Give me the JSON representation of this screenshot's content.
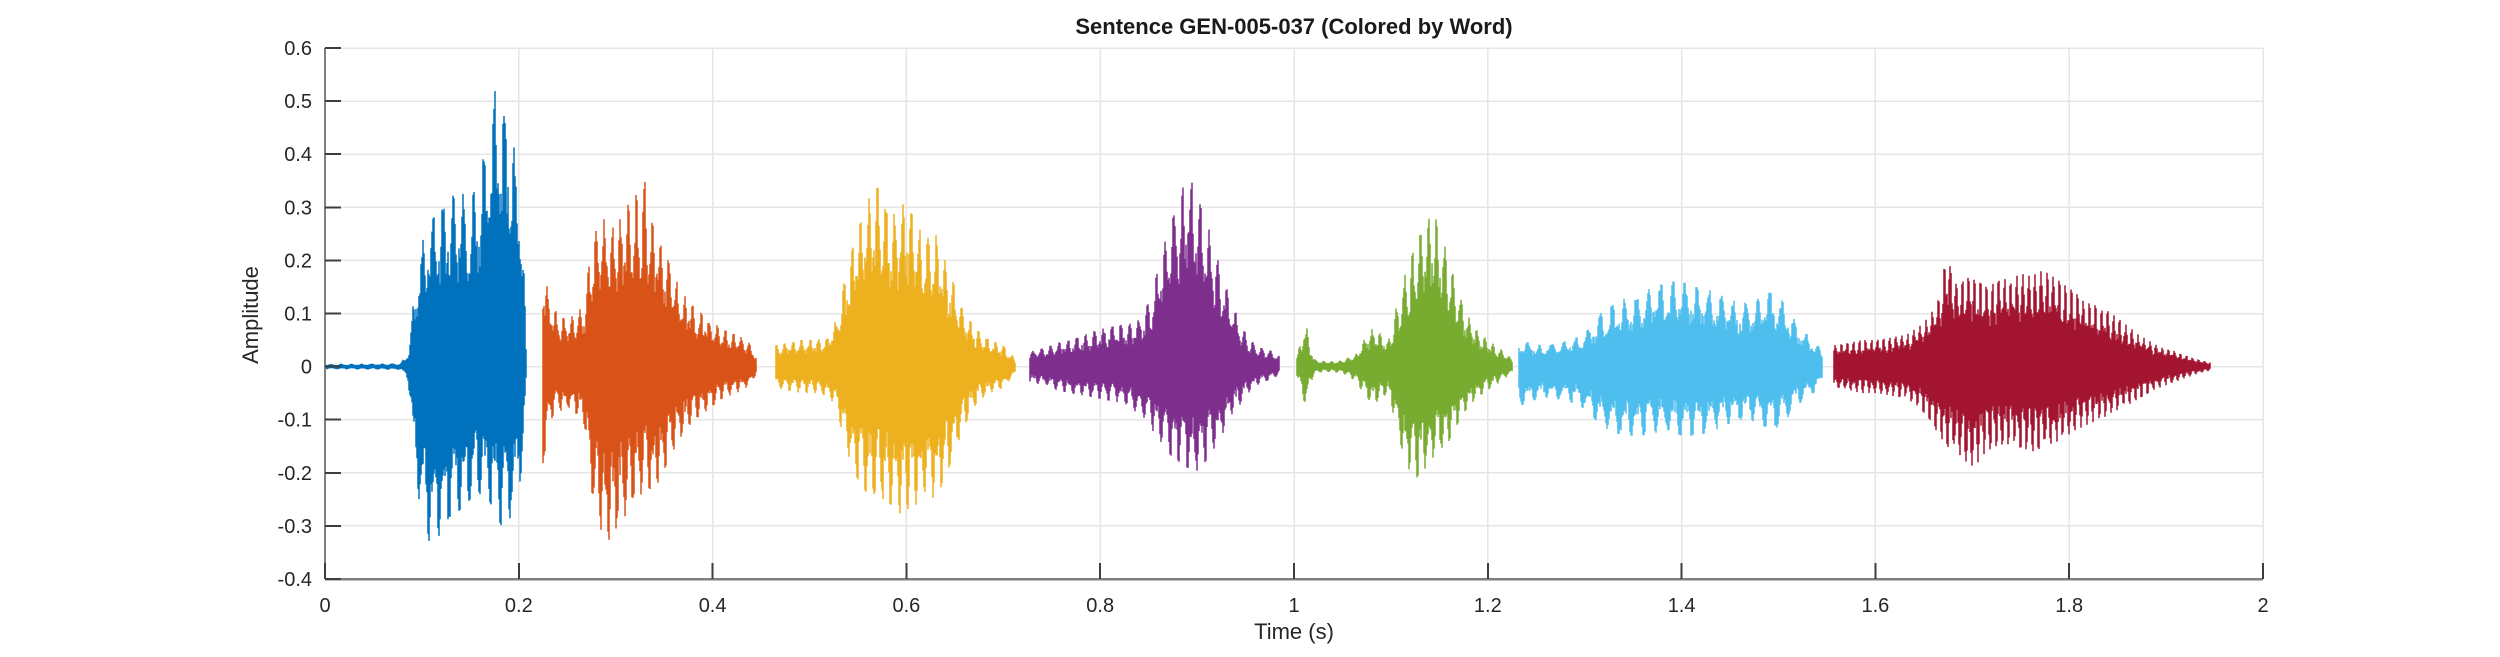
{
  "chart_data": {
    "type": "line",
    "subtype": "audio-waveform",
    "title": "Sentence GEN-005-037 (Colored by Word)",
    "xlabel": "Time (s)",
    "ylabel": "Amplitude",
    "xlim": [
      0,
      2
    ],
    "ylim": [
      -0.4,
      0.6
    ],
    "grid": true,
    "legend_position": "none",
    "axis_color": "#7f7f7f",
    "tick_mark_color": "#3d3d3d",
    "grid_color": "#e6e6e6",
    "tick_label_color": "#262626",
    "background_color": "#ffffff",
    "xticks": {
      "values": [
        0,
        0.2,
        0.4,
        0.6,
        0.8,
        1,
        1.2,
        1.4,
        1.6,
        1.8,
        2
      ],
      "labels": [
        "0",
        "0.2",
        "0.4",
        "0.6",
        "0.8",
        "1",
        "1.2",
        "1.4",
        "1.6",
        "1.8",
        "2"
      ]
    },
    "yticks": {
      "values": [
        0.6,
        0.5,
        0.4,
        0.3,
        0.2,
        0.1,
        0,
        -0.1,
        -0.2,
        -0.3,
        -0.4
      ],
      "labels": [
        "0.6",
        "0.5",
        "0.4",
        "0.3",
        "0.2",
        "0.1",
        "0",
        "-0.1",
        "-0.2",
        "-0.3",
        "-0.4"
      ]
    },
    "words": [
      {
        "index": 1,
        "color": "#0072BD",
        "t_start": 0.0,
        "t_end": 0.2075,
        "peak_amplitude": 0.52,
        "min_amplitude": -0.34,
        "texture_f0_hz": 95,
        "seed": 11,
        "envelope": {
          "t": [
            0.0,
            0.078,
            0.083,
            0.086,
            0.09,
            0.096,
            0.104,
            0.112,
            0.12,
            0.13,
            0.14,
            0.15,
            0.16,
            0.168,
            0.175,
            0.182,
            0.19,
            0.196,
            0.201,
            0.205,
            0.2075
          ],
          "upper": [
            0.005,
            0.006,
            0.02,
            0.03,
            0.1,
            0.2,
            0.26,
            0.28,
            0.3,
            0.32,
            0.33,
            0.31,
            0.36,
            0.44,
            0.52,
            0.5,
            0.48,
            0.4,
            0.33,
            0.22,
            0.03
          ],
          "lower": [
            -0.005,
            -0.006,
            -0.015,
            -0.03,
            -0.12,
            -0.24,
            -0.32,
            -0.34,
            -0.31,
            -0.28,
            -0.27,
            -0.25,
            -0.24,
            -0.25,
            -0.27,
            -0.3,
            -0.29,
            -0.26,
            -0.22,
            -0.16,
            -0.03
          ]
        }
      },
      {
        "index": 2,
        "color": "#D95319",
        "t_start": 0.2245,
        "t_end": 0.445,
        "peak_amplitude": 0.35,
        "min_amplitude": -0.33,
        "texture_f0_hz": 120,
        "seed": 22,
        "envelope": {
          "t": [
            0.2245,
            0.228,
            0.233,
            0.24,
            0.25,
            0.26,
            0.268,
            0.274,
            0.282,
            0.29,
            0.298,
            0.306,
            0.315,
            0.324,
            0.331,
            0.338,
            0.346,
            0.356,
            0.368,
            0.382,
            0.396,
            0.41,
            0.424,
            0.436,
            0.445
          ],
          "upper": [
            0.2,
            0.16,
            0.12,
            0.1,
            0.09,
            0.1,
            0.12,
            0.22,
            0.27,
            0.28,
            0.26,
            0.29,
            0.31,
            0.33,
            0.35,
            0.28,
            0.24,
            0.19,
            0.14,
            0.11,
            0.09,
            0.07,
            0.06,
            0.05,
            0.02
          ],
          "lower": [
            -0.21,
            -0.14,
            -0.1,
            -0.085,
            -0.08,
            -0.09,
            -0.11,
            -0.24,
            -0.3,
            -0.33,
            -0.32,
            -0.29,
            -0.27,
            -0.25,
            -0.22,
            -0.24,
            -0.21,
            -0.17,
            -0.13,
            -0.1,
            -0.08,
            -0.06,
            -0.05,
            -0.04,
            -0.015
          ]
        }
      },
      {
        "index": 3,
        "color": "#EDB120",
        "t_start": 0.465,
        "t_end": 0.712,
        "peak_amplitude": 0.35,
        "min_amplitude": -0.28,
        "texture_f0_hz": 115,
        "seed": 33,
        "envelope": {
          "t": [
            0.465,
            0.478,
            0.492,
            0.506,
            0.518,
            0.528,
            0.536,
            0.544,
            0.552,
            0.56,
            0.568,
            0.576,
            0.584,
            0.592,
            0.6,
            0.61,
            0.62,
            0.63,
            0.64,
            0.65,
            0.66,
            0.672,
            0.686,
            0.7,
            0.712
          ],
          "upper": [
            0.04,
            0.045,
            0.05,
            0.05,
            0.055,
            0.09,
            0.16,
            0.22,
            0.27,
            0.31,
            0.35,
            0.31,
            0.28,
            0.3,
            0.31,
            0.27,
            0.24,
            0.25,
            0.2,
            0.15,
            0.1,
            0.07,
            0.05,
            0.04,
            0.015
          ],
          "lower": [
            -0.04,
            -0.045,
            -0.05,
            -0.05,
            -0.055,
            -0.08,
            -0.14,
            -0.19,
            -0.22,
            -0.24,
            -0.24,
            -0.25,
            -0.26,
            -0.28,
            -0.27,
            -0.26,
            -0.24,
            -0.25,
            -0.21,
            -0.16,
            -0.11,
            -0.07,
            -0.05,
            -0.04,
            -0.015
          ]
        }
      },
      {
        "index": 4,
        "color": "#7E2F8E",
        "t_start": 0.728,
        "t_end": 0.985,
        "peak_amplitude": 0.36,
        "min_amplitude": -0.2,
        "texture_f0_hz": 110,
        "seed": 44,
        "envelope": {
          "t": [
            0.728,
            0.742,
            0.756,
            0.77,
            0.784,
            0.798,
            0.812,
            0.826,
            0.84,
            0.85,
            0.858,
            0.866,
            0.874,
            0.882,
            0.89,
            0.897,
            0.904,
            0.912,
            0.92,
            0.928,
            0.936,
            0.945,
            0.955,
            0.966,
            0.976,
            0.985
          ],
          "upper": [
            0.03,
            0.035,
            0.045,
            0.05,
            0.06,
            0.07,
            0.075,
            0.08,
            0.09,
            0.12,
            0.17,
            0.23,
            0.28,
            0.32,
            0.36,
            0.34,
            0.3,
            0.26,
            0.21,
            0.16,
            0.12,
            0.08,
            0.05,
            0.035,
            0.03,
            0.02
          ],
          "lower": [
            -0.03,
            -0.035,
            -0.045,
            -0.05,
            -0.055,
            -0.06,
            -0.065,
            -0.07,
            -0.09,
            -0.11,
            -0.13,
            -0.15,
            -0.17,
            -0.18,
            -0.19,
            -0.2,
            -0.19,
            -0.17,
            -0.15,
            -0.12,
            -0.09,
            -0.07,
            -0.045,
            -0.03,
            -0.025,
            -0.015
          ]
        }
      },
      {
        "index": 5,
        "color": "#77AC30",
        "t_start": 1.003,
        "t_end": 1.225,
        "peak_amplitude": 0.29,
        "min_amplitude": -0.21,
        "texture_f0_hz": 120,
        "seed": 55,
        "envelope": {
          "t": [
            1.003,
            1.008,
            1.012,
            1.016,
            1.022,
            1.035,
            1.05,
            1.065,
            1.075,
            1.083,
            1.09,
            1.097,
            1.104,
            1.112,
            1.12,
            1.128,
            1.136,
            1.144,
            1.152,
            1.16,
            1.168,
            1.178,
            1.188,
            1.2,
            1.212,
            1.225
          ],
          "upper": [
            0.025,
            0.05,
            0.09,
            0.04,
            0.012,
            0.01,
            0.012,
            0.025,
            0.06,
            0.075,
            0.06,
            0.05,
            0.1,
            0.16,
            0.2,
            0.24,
            0.27,
            0.29,
            0.25,
            0.2,
            0.15,
            0.1,
            0.07,
            0.05,
            0.035,
            0.015
          ],
          "lower": [
            -0.02,
            -0.05,
            -0.075,
            -0.035,
            -0.012,
            -0.01,
            -0.012,
            -0.03,
            -0.06,
            -0.07,
            -0.06,
            -0.05,
            -0.1,
            -0.16,
            -0.2,
            -0.21,
            -0.19,
            -0.17,
            -0.16,
            -0.14,
            -0.11,
            -0.08,
            -0.06,
            -0.045,
            -0.03,
            -0.012
          ]
        }
      },
      {
        "index": 6,
        "color": "#4DBEEE",
        "t_start": 1.232,
        "t_end": 1.545,
        "peak_amplitude": 0.16,
        "min_amplitude": -0.13,
        "texture_f0_hz": 80,
        "seed": 66,
        "envelope": {
          "t": [
            1.232,
            1.244,
            1.256,
            1.268,
            1.28,
            1.292,
            1.304,
            1.316,
            1.33,
            1.344,
            1.358,
            1.372,
            1.386,
            1.4,
            1.414,
            1.428,
            1.44,
            1.452,
            1.464,
            1.476,
            1.488,
            1.5,
            1.512,
            1.524,
            1.536,
            1.545
          ],
          "upper": [
            0.05,
            0.045,
            0.04,
            0.045,
            0.05,
            0.055,
            0.07,
            0.1,
            0.12,
            0.13,
            0.14,
            0.15,
            0.16,
            0.16,
            0.15,
            0.145,
            0.135,
            0.125,
            0.12,
            0.125,
            0.14,
            0.135,
            0.1,
            0.07,
            0.05,
            0.03
          ],
          "lower": [
            -0.075,
            -0.065,
            -0.06,
            -0.06,
            -0.065,
            -0.07,
            -0.085,
            -0.11,
            -0.125,
            -0.13,
            -0.13,
            -0.125,
            -0.12,
            -0.13,
            -0.13,
            -0.125,
            -0.115,
            -0.105,
            -0.1,
            -0.105,
            -0.115,
            -0.12,
            -0.09,
            -0.065,
            -0.05,
            -0.03
          ]
        }
      },
      {
        "index": 7,
        "color": "#A2142F",
        "t_start": 1.557,
        "t_end": 1.945,
        "peak_amplitude": 0.22,
        "min_amplitude": -0.19,
        "texture_f0_hz": 160,
        "seed": 77,
        "envelope": {
          "t": [
            1.557,
            1.572,
            1.587,
            1.602,
            1.617,
            1.632,
            1.645,
            1.656,
            1.666,
            1.674,
            1.682,
            1.69,
            1.698,
            1.706,
            1.714,
            1.724,
            1.734,
            1.744,
            1.754,
            1.764,
            1.774,
            1.784,
            1.794,
            1.806,
            1.818,
            1.83,
            1.844,
            1.858,
            1.872,
            1.886,
            1.9,
            1.915,
            1.93,
            1.945
          ],
          "upper": [
            0.04,
            0.045,
            0.05,
            0.05,
            0.055,
            0.06,
            0.075,
            0.095,
            0.13,
            0.22,
            0.17,
            0.16,
            0.17,
            0.16,
            0.15,
            0.16,
            0.165,
            0.17,
            0.175,
            0.18,
            0.18,
            0.17,
            0.155,
            0.14,
            0.12,
            0.115,
            0.1,
            0.08,
            0.06,
            0.045,
            0.035,
            0.025,
            0.015,
            0.008
          ],
          "lower": [
            -0.04,
            -0.045,
            -0.05,
            -0.05,
            -0.055,
            -0.06,
            -0.075,
            -0.1,
            -0.13,
            -0.15,
            -0.16,
            -0.17,
            -0.19,
            -0.18,
            -0.16,
            -0.15,
            -0.145,
            -0.15,
            -0.155,
            -0.16,
            -0.15,
            -0.145,
            -0.135,
            -0.12,
            -0.11,
            -0.1,
            -0.09,
            -0.075,
            -0.06,
            -0.045,
            -0.035,
            -0.025,
            -0.015,
            -0.008
          ]
        }
      }
    ]
  }
}
